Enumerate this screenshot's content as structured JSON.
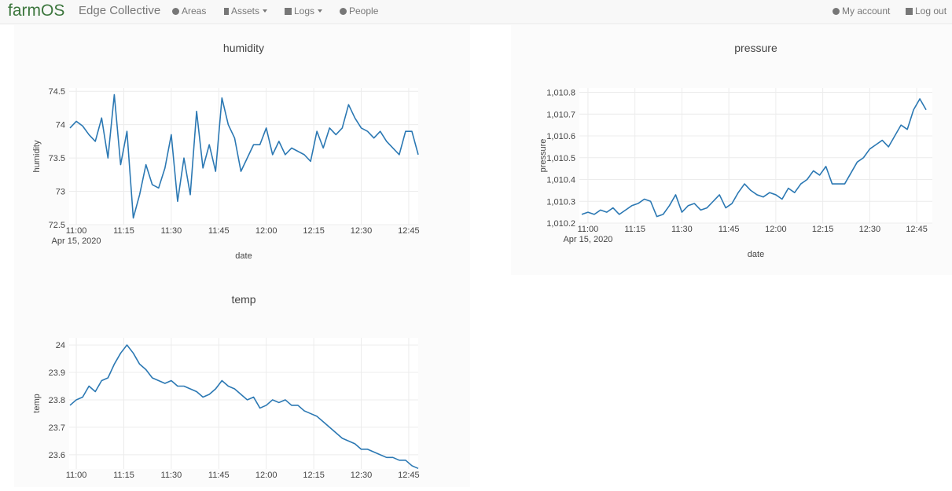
{
  "nav": {
    "brand": "farmOS",
    "site": "Edge Collective",
    "items": [
      "Areas",
      "Assets",
      "Logs",
      "People"
    ],
    "account": "My account",
    "logout": "Log out"
  },
  "chart_data": [
    {
      "type": "line",
      "title": "humidity",
      "xlabel": "date",
      "ylabel": "humidity",
      "color": "#2b78b3",
      "grid": true,
      "x_sublabel": "Apr 15, 2020",
      "x": [
        "2020-04-15 10:58",
        "2020-04-15 11:00",
        "2020-04-15 11:02",
        "2020-04-15 11:04",
        "2020-04-15 11:06",
        "2020-04-15 11:08",
        "2020-04-15 11:10",
        "2020-04-15 11:12",
        "2020-04-15 11:14",
        "2020-04-15 11:16",
        "2020-04-15 11:18",
        "2020-04-15 11:20",
        "2020-04-15 11:22",
        "2020-04-15 11:24",
        "2020-04-15 11:26",
        "2020-04-15 11:28",
        "2020-04-15 11:30",
        "2020-04-15 11:32",
        "2020-04-15 11:34",
        "2020-04-15 11:36",
        "2020-04-15 11:38",
        "2020-04-15 11:40",
        "2020-04-15 11:42",
        "2020-04-15 11:44",
        "2020-04-15 11:46",
        "2020-04-15 11:48",
        "2020-04-15 11:50",
        "2020-04-15 11:52",
        "2020-04-15 11:54",
        "2020-04-15 11:56",
        "2020-04-15 11:58",
        "2020-04-15 12:00",
        "2020-04-15 12:02",
        "2020-04-15 12:04",
        "2020-04-15 12:06",
        "2020-04-15 12:08",
        "2020-04-15 12:10",
        "2020-04-15 12:12",
        "2020-04-15 12:14",
        "2020-04-15 12:16",
        "2020-04-15 12:18",
        "2020-04-15 12:20",
        "2020-04-15 12:22",
        "2020-04-15 12:24",
        "2020-04-15 12:26",
        "2020-04-15 12:28",
        "2020-04-15 12:30",
        "2020-04-15 12:32",
        "2020-04-15 12:34",
        "2020-04-15 12:36",
        "2020-04-15 12:38",
        "2020-04-15 12:40",
        "2020-04-15 12:42",
        "2020-04-15 12:44",
        "2020-04-15 12:46",
        "2020-04-15 12:48"
      ],
      "values": [
        73.95,
        74.05,
        73.98,
        73.85,
        73.75,
        74.1,
        73.5,
        74.45,
        73.4,
        73.9,
        72.6,
        72.95,
        73.4,
        73.1,
        73.05,
        73.35,
        73.85,
        72.85,
        73.5,
        72.95,
        74.2,
        73.35,
        73.7,
        73.3,
        74.4,
        74.0,
        73.8,
        73.3,
        73.5,
        73.7,
        73.7,
        73.95,
        73.55,
        73.75,
        73.55,
        73.65,
        73.6,
        73.55,
        73.45,
        73.9,
        73.65,
        73.95,
        73.85,
        73.95,
        74.3,
        74.1,
        73.95,
        73.9,
        73.8,
        73.9,
        73.75,
        73.65,
        73.55,
        73.9,
        73.9,
        73.55
      ],
      "xlim": [
        "2020-04-15 10:57:45",
        "2020-04-15 12:48"
      ],
      "xticks": [
        {
          "value": "2020-04-15 11:00",
          "label": "11:00"
        },
        {
          "value": "2020-04-15 11:15",
          "label": "11:15"
        },
        {
          "value": "2020-04-15 11:30",
          "label": "11:30"
        },
        {
          "value": "2020-04-15 11:45",
          "label": "11:45"
        },
        {
          "value": "2020-04-15 12:00",
          "label": "12:00"
        },
        {
          "value": "2020-04-15 12:15",
          "label": "12:15"
        },
        {
          "value": "2020-04-15 12:30",
          "label": "12:30"
        },
        {
          "value": "2020-04-15 12:45",
          "label": "12:45"
        }
      ],
      "ylim": [
        72.5,
        74.55
      ],
      "yticks": [
        72.5,
        73,
        73.5,
        74,
        74.5
      ]
    },
    {
      "type": "line",
      "title": "pressure",
      "xlabel": "date",
      "ylabel": "pressure",
      "color": "#2b78b3",
      "grid": true,
      "x_sublabel": "Apr 15, 2020",
      "x": [
        "2020-04-15 10:58",
        "2020-04-15 11:00",
        "2020-04-15 11:02",
        "2020-04-15 11:04",
        "2020-04-15 11:06",
        "2020-04-15 11:08",
        "2020-04-15 11:10",
        "2020-04-15 11:12",
        "2020-04-15 11:14",
        "2020-04-15 11:16",
        "2020-04-15 11:18",
        "2020-04-15 11:20",
        "2020-04-15 11:22",
        "2020-04-15 11:24",
        "2020-04-15 11:26",
        "2020-04-15 11:28",
        "2020-04-15 11:30",
        "2020-04-15 11:32",
        "2020-04-15 11:34",
        "2020-04-15 11:36",
        "2020-04-15 11:38",
        "2020-04-15 11:40",
        "2020-04-15 11:42",
        "2020-04-15 11:44",
        "2020-04-15 11:46",
        "2020-04-15 11:48",
        "2020-04-15 11:50",
        "2020-04-15 11:52",
        "2020-04-15 11:54",
        "2020-04-15 11:56",
        "2020-04-15 11:58",
        "2020-04-15 12:00",
        "2020-04-15 12:02",
        "2020-04-15 12:04",
        "2020-04-15 12:06",
        "2020-04-15 12:08",
        "2020-04-15 12:10",
        "2020-04-15 12:12",
        "2020-04-15 12:14",
        "2020-04-15 12:16",
        "2020-04-15 12:18",
        "2020-04-15 12:20",
        "2020-04-15 12:22",
        "2020-04-15 12:24",
        "2020-04-15 12:26",
        "2020-04-15 12:28",
        "2020-04-15 12:30",
        "2020-04-15 12:32",
        "2020-04-15 12:34",
        "2020-04-15 12:36",
        "2020-04-15 12:38",
        "2020-04-15 12:40",
        "2020-04-15 12:42",
        "2020-04-15 12:44",
        "2020-04-15 12:46",
        "2020-04-15 12:48"
      ],
      "values": [
        1010.24,
        1010.25,
        1010.24,
        1010.26,
        1010.25,
        1010.27,
        1010.24,
        1010.26,
        1010.28,
        1010.29,
        1010.31,
        1010.3,
        1010.23,
        1010.24,
        1010.28,
        1010.33,
        1010.25,
        1010.28,
        1010.29,
        1010.26,
        1010.27,
        1010.3,
        1010.33,
        1010.27,
        1010.29,
        1010.34,
        1010.38,
        1010.35,
        1010.33,
        1010.32,
        1010.34,
        1010.33,
        1010.31,
        1010.36,
        1010.34,
        1010.38,
        1010.4,
        1010.44,
        1010.42,
        1010.46,
        1010.38,
        1010.38,
        1010.38,
        1010.43,
        1010.48,
        1010.5,
        1010.54,
        1010.56,
        1010.58,
        1010.55,
        1010.6,
        1010.65,
        1010.63,
        1010.72,
        1010.77,
        1010.72
      ],
      "xlim": [
        "2020-04-15 10:57:15",
        "2020-04-15 12:50"
      ],
      "xticks": [
        {
          "value": "2020-04-15 11:00",
          "label": "11:00"
        },
        {
          "value": "2020-04-15 11:15",
          "label": "11:15"
        },
        {
          "value": "2020-04-15 11:30",
          "label": "11:30"
        },
        {
          "value": "2020-04-15 11:45",
          "label": "11:45"
        },
        {
          "value": "2020-04-15 12:00",
          "label": "12:00"
        },
        {
          "value": "2020-04-15 12:15",
          "label": "12:15"
        },
        {
          "value": "2020-04-15 12:30",
          "label": "12:30"
        },
        {
          "value": "2020-04-15 12:45",
          "label": "12:45"
        }
      ],
      "ylim": [
        1010.2,
        1010.82
      ],
      "yticks": [
        {
          "value": 1010.2,
          "label": "1,010.2"
        },
        {
          "value": 1010.3,
          "label": "1,010.3"
        },
        {
          "value": 1010.4,
          "label": "1,010.4"
        },
        {
          "value": 1010.5,
          "label": "1,010.5"
        },
        {
          "value": 1010.6,
          "label": "1,010.6"
        },
        {
          "value": 1010.7,
          "label": "1,010.7"
        },
        {
          "value": 1010.8,
          "label": "1,010.8"
        }
      ]
    },
    {
      "type": "line",
      "title": "temp",
      "ylabel": "temp",
      "color": "#2b78b3",
      "grid": true,
      "x": [
        "2020-04-15 10:58",
        "2020-04-15 11:00",
        "2020-04-15 11:02",
        "2020-04-15 11:04",
        "2020-04-15 11:06",
        "2020-04-15 11:08",
        "2020-04-15 11:10",
        "2020-04-15 11:12",
        "2020-04-15 11:14",
        "2020-04-15 11:16",
        "2020-04-15 11:18",
        "2020-04-15 11:20",
        "2020-04-15 11:22",
        "2020-04-15 11:24",
        "2020-04-15 11:26",
        "2020-04-15 11:28",
        "2020-04-15 11:30",
        "2020-04-15 11:32",
        "2020-04-15 11:34",
        "2020-04-15 11:36",
        "2020-04-15 11:38",
        "2020-04-15 11:40",
        "2020-04-15 11:42",
        "2020-04-15 11:44",
        "2020-04-15 11:46",
        "2020-04-15 11:48",
        "2020-04-15 11:50",
        "2020-04-15 11:52",
        "2020-04-15 11:54",
        "2020-04-15 11:56",
        "2020-04-15 11:58",
        "2020-04-15 12:00",
        "2020-04-15 12:02",
        "2020-04-15 12:04",
        "2020-04-15 12:06",
        "2020-04-15 12:08",
        "2020-04-15 12:10",
        "2020-04-15 12:12",
        "2020-04-15 12:14",
        "2020-04-15 12:16",
        "2020-04-15 12:18",
        "2020-04-15 12:20",
        "2020-04-15 12:22",
        "2020-04-15 12:24",
        "2020-04-15 12:26",
        "2020-04-15 12:28",
        "2020-04-15 12:30",
        "2020-04-15 12:32",
        "2020-04-15 12:34",
        "2020-04-15 12:36",
        "2020-04-15 12:38",
        "2020-04-15 12:40",
        "2020-04-15 12:42",
        "2020-04-15 12:44",
        "2020-04-15 12:46",
        "2020-04-15 12:48"
      ],
      "values": [
        23.78,
        23.8,
        23.81,
        23.85,
        23.83,
        23.87,
        23.88,
        23.93,
        23.97,
        24.0,
        23.97,
        23.93,
        23.91,
        23.88,
        23.87,
        23.86,
        23.87,
        23.85,
        23.85,
        23.84,
        23.83,
        23.81,
        23.82,
        23.84,
        23.87,
        23.85,
        23.84,
        23.82,
        23.8,
        23.81,
        23.77,
        23.78,
        23.8,
        23.79,
        23.8,
        23.78,
        23.78,
        23.76,
        23.75,
        23.74,
        23.72,
        23.7,
        23.68,
        23.66,
        23.65,
        23.64,
        23.62,
        23.62,
        23.61,
        23.6,
        23.59,
        23.59,
        23.58,
        23.58,
        23.56,
        23.55
      ],
      "xlim": [
        "2020-04-15 10:57:45",
        "2020-04-15 12:48"
      ],
      "xticks": [
        {
          "value": "2020-04-15 11:00",
          "label": "11:00"
        },
        {
          "value": "2020-04-15 11:15",
          "label": "11:15"
        },
        {
          "value": "2020-04-15 11:30",
          "label": "11:30"
        },
        {
          "value": "2020-04-15 11:45",
          "label": "11:45"
        },
        {
          "value": "2020-04-15 12:00",
          "label": "12:00"
        },
        {
          "value": "2020-04-15 12:15",
          "label": "12:15"
        },
        {
          "value": "2020-04-15 12:30",
          "label": "12:30"
        },
        {
          "value": "2020-04-15 12:45",
          "label": "12:45"
        }
      ],
      "ylim": [
        23.548,
        24.026
      ],
      "yticks": [
        23.6,
        23.7,
        23.8,
        23.9,
        24
      ]
    }
  ]
}
